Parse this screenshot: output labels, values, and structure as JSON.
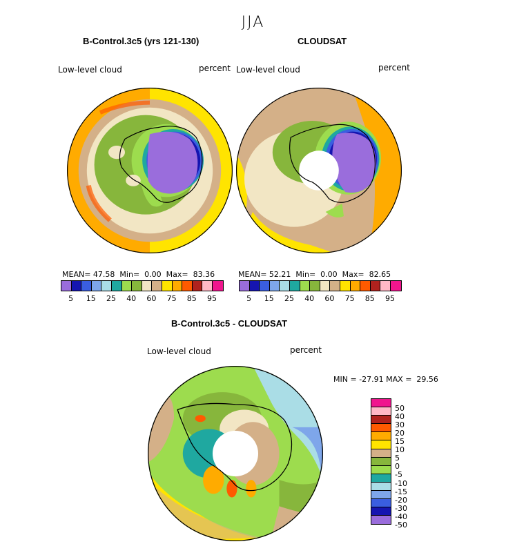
{
  "season_title": "JJA",
  "panels": [
    {
      "title": "B-Control.3c5 (yrs 121-130)",
      "variable": "Low-level cloud",
      "units": "percent",
      "stats": {
        "mean_label": "MEAN=",
        "mean": "47.58",
        "min_label": "Min=",
        "min": "0.00",
        "max_label": "Max=",
        "max": "83.36"
      }
    },
    {
      "title": "CLOUDSAT",
      "variable": "Low-level cloud",
      "units": "percent",
      "stats": {
        "mean_label": "MEAN=",
        "mean": "52.21",
        "min_label": "Min=",
        "min": "0.00",
        "max_label": "Max=",
        "max": "82.65"
      }
    },
    {
      "title": "B-Control.3c5 - CLOUDSAT",
      "variable": "Low-level cloud",
      "units": "percent",
      "stats": {
        "min_label": "MIN =",
        "min": "-27.91",
        "max_label": "MAX =",
        "max": "29.56"
      }
    }
  ],
  "colorbar_abs": {
    "colors": [
      "#9a6ddc",
      "#1515b0",
      "#3a5ee0",
      "#7ea6ea",
      "#aadde6",
      "#1fa8a0",
      "#9ddc4e",
      "#87b63c",
      "#f2e6c4",
      "#d4b088",
      "#ffe400",
      "#ffab00",
      "#ff5a00",
      "#b0221e",
      "#ffb8c6",
      "#f0168e"
    ],
    "tick_labels": [
      "5",
      "15",
      "25",
      "40",
      "60",
      "75",
      "85",
      "95"
    ]
  },
  "colorbar_diff": {
    "colors": [
      "#f0168e",
      "#ffb8c6",
      "#b0221e",
      "#ff5a00",
      "#ffab00",
      "#ffe400",
      "#d4b088",
      "#87b63c",
      "#9ddc4e",
      "#1fa8a0",
      "#aadde6",
      "#7ea6ea",
      "#3a5ee0",
      "#1515b0",
      "#9a6ddc"
    ],
    "tick_labels": [
      "50",
      "40",
      "30",
      "20",
      "15",
      "10",
      "5",
      "0",
      "-5",
      "-10",
      "-15",
      "-20",
      "-30",
      "-40",
      "-50"
    ]
  }
}
